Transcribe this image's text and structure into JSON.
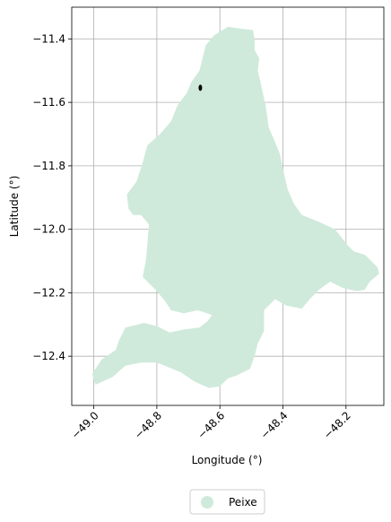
{
  "chart_data": {
    "type": "map",
    "xlabel": "Longitude (°)",
    "ylabel": "Latitude (°)",
    "xlim": [
      -49.07,
      -48.08
    ],
    "ylim": [
      -12.555,
      -11.3
    ],
    "grid": true,
    "x_ticks": [
      -49.0,
      -48.8,
      -48.6,
      -48.4,
      -48.2
    ],
    "x_tick_labels": [
      "−49.0",
      "−48.8",
      "−48.6",
      "−48.4",
      "−48.2"
    ],
    "y_ticks": [
      -11.4,
      -11.6,
      -11.8,
      -12.0,
      -12.2,
      -12.4
    ],
    "y_tick_labels": [
      "−11.4",
      "−11.6",
      "−11.8",
      "−12.0",
      "−12.2",
      "−12.4"
    ],
    "legend": {
      "placement": "bottom-center",
      "entries": [
        {
          "label": "Peixe",
          "color": "#cfeadb"
        }
      ]
    },
    "region": {
      "name": "Peixe",
      "color": "#cfeadb",
      "boundary": [
        [
          -48.575,
          -11.362
        ],
        [
          -48.53,
          -11.368
        ],
        [
          -48.495,
          -11.372
        ],
        [
          -48.49,
          -11.4
        ],
        [
          -48.49,
          -11.435
        ],
        [
          -48.475,
          -11.462
        ],
        [
          -48.48,
          -11.5
        ],
        [
          -48.47,
          -11.542
        ],
        [
          -48.455,
          -11.61
        ],
        [
          -48.445,
          -11.68
        ],
        [
          -48.425,
          -11.725
        ],
        [
          -48.41,
          -11.762
        ],
        [
          -48.4,
          -11.81
        ],
        [
          -48.385,
          -11.875
        ],
        [
          -48.365,
          -11.92
        ],
        [
          -48.34,
          -11.955
        ],
        [
          -48.29,
          -11.975
        ],
        [
          -48.235,
          -12.0
        ],
        [
          -48.195,
          -12.05
        ],
        [
          -48.175,
          -12.07
        ],
        [
          -48.14,
          -12.08
        ],
        [
          -48.1,
          -12.12
        ],
        [
          -48.095,
          -12.14
        ],
        [
          -48.125,
          -12.165
        ],
        [
          -48.14,
          -12.19
        ],
        [
          -48.165,
          -12.195
        ],
        [
          -48.21,
          -12.185
        ],
        [
          -48.25,
          -12.165
        ],
        [
          -48.285,
          -12.19
        ],
        [
          -48.315,
          -12.22
        ],
        [
          -48.34,
          -12.25
        ],
        [
          -48.39,
          -12.24
        ],
        [
          -48.425,
          -12.22
        ],
        [
          -48.46,
          -12.255
        ],
        [
          -48.46,
          -12.32
        ],
        [
          -48.48,
          -12.36
        ],
        [
          -48.49,
          -12.4
        ],
        [
          -48.505,
          -12.44
        ],
        [
          -48.545,
          -12.46
        ],
        [
          -48.575,
          -12.47
        ],
        [
          -48.6,
          -12.495
        ],
        [
          -48.635,
          -12.5
        ],
        [
          -48.68,
          -12.48
        ],
        [
          -48.725,
          -12.45
        ],
        [
          -48.8,
          -12.42
        ],
        [
          -48.85,
          -12.42
        ],
        [
          -48.9,
          -12.43
        ],
        [
          -48.94,
          -12.465
        ],
        [
          -48.995,
          -12.49
        ],
        [
          -49.005,
          -12.455
        ],
        [
          -48.975,
          -12.41
        ],
        [
          -48.93,
          -12.38
        ],
        [
          -48.92,
          -12.35
        ],
        [
          -48.9,
          -12.31
        ],
        [
          -48.84,
          -12.295
        ],
        [
          -48.8,
          -12.305
        ],
        [
          -48.76,
          -12.325
        ],
        [
          -48.71,
          -12.315
        ],
        [
          -48.665,
          -12.31
        ],
        [
          -48.64,
          -12.29
        ],
        [
          -48.625,
          -12.27
        ],
        [
          -48.67,
          -12.255
        ],
        [
          -48.715,
          -12.265
        ],
        [
          -48.755,
          -12.255
        ],
        [
          -48.775,
          -12.225
        ],
        [
          -48.805,
          -12.19
        ],
        [
          -48.845,
          -12.15
        ],
        [
          -48.835,
          -12.1
        ],
        [
          -48.83,
          -12.045
        ],
        [
          -48.825,
          -11.985
        ],
        [
          -48.85,
          -11.955
        ],
        [
          -48.875,
          -11.955
        ],
        [
          -48.89,
          -11.935
        ],
        [
          -48.895,
          -11.89
        ],
        [
          -48.865,
          -11.85
        ],
        [
          -48.845,
          -11.79
        ],
        [
          -48.83,
          -11.735
        ],
        [
          -48.79,
          -11.7
        ],
        [
          -48.755,
          -11.66
        ],
        [
          -48.735,
          -11.61
        ],
        [
          -48.705,
          -11.57
        ],
        [
          -48.69,
          -11.535
        ],
        [
          -48.665,
          -11.5
        ],
        [
          -48.655,
          -11.46
        ],
        [
          -48.645,
          -11.42
        ],
        [
          -48.62,
          -11.39
        ]
      ]
    },
    "marker": {
      "type": "point",
      "lon": -48.662,
      "lat": -11.554,
      "color": "#000000"
    }
  }
}
